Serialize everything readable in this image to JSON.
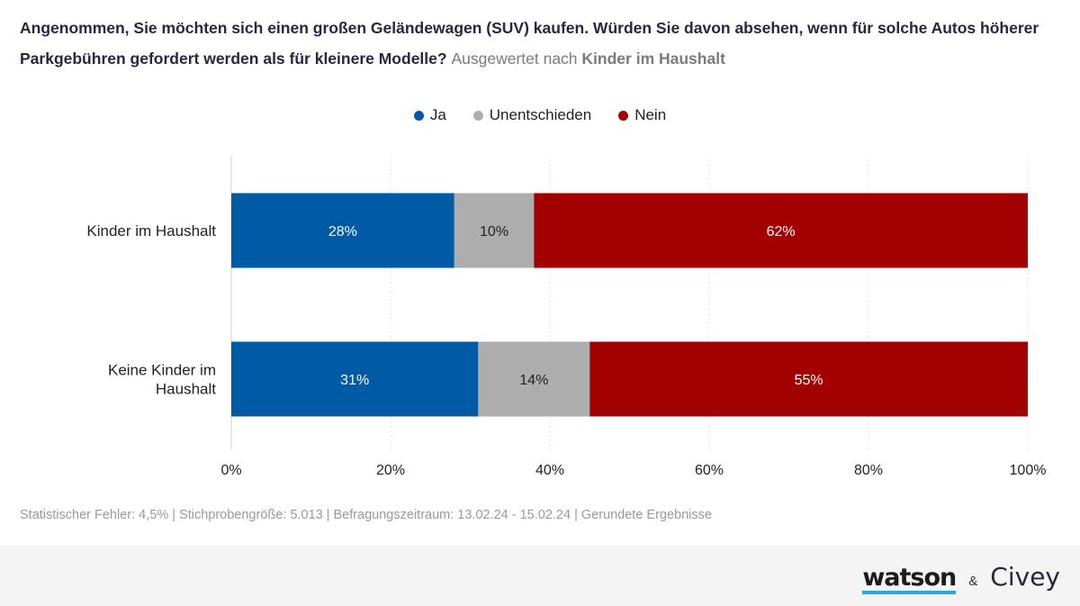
{
  "title": {
    "question": "Angenommen, Sie möchten sich einen großen Geländewagen (SUV) kaufen. Würden Sie davon absehen, wenn für solche Autos höherer Parkgebühren gefordert werden als für kleinere Modelle?",
    "breakdown_prefix": "Ausgewertet nach",
    "breakdown_variable": "Kinder im Haushalt"
  },
  "legend": [
    {
      "label": "Ja",
      "color": "#005aa6"
    },
    {
      "label": "Unentschieden",
      "color": "#adadad"
    },
    {
      "label": "Nein",
      "color": "#a30000"
    }
  ],
  "chart_data": {
    "type": "bar",
    "orientation": "horizontal",
    "stacked": true,
    "categories": [
      "Kinder im Haushalt",
      "Keine Kinder im Haushalt"
    ],
    "category_lines": [
      [
        "Kinder im Haushalt"
      ],
      [
        "Keine Kinder im",
        "Haushalt"
      ]
    ],
    "series": [
      {
        "name": "Ja",
        "values": [
          28,
          31
        ],
        "color": "#005aa6",
        "label_color": "#ffffff"
      },
      {
        "name": "Unentschieden",
        "values": [
          10,
          14
        ],
        "color": "#adadad",
        "label_color": "#222222"
      },
      {
        "name": "Nein",
        "values": [
          62,
          55
        ],
        "color": "#a30000",
        "label_color": "#ffffff"
      }
    ],
    "xlim": [
      0,
      100
    ],
    "xticks": [
      0,
      20,
      40,
      60,
      80,
      100
    ],
    "xtick_labels": [
      "0%",
      "20%",
      "40%",
      "60%",
      "80%",
      "100%"
    ],
    "value_suffix": "%",
    "grid": true,
    "legend_position": "top-center"
  },
  "footer": {
    "note": "Statistischer Fehler: 4,5% | Stichprobengröße: 5.013 | Befragungszeitraum: 13.02.24 - 15.02.24 | Gerundete Ergebnisse",
    "brand_left": "watson",
    "brand_amp": "&",
    "brand_right": "Civey"
  }
}
